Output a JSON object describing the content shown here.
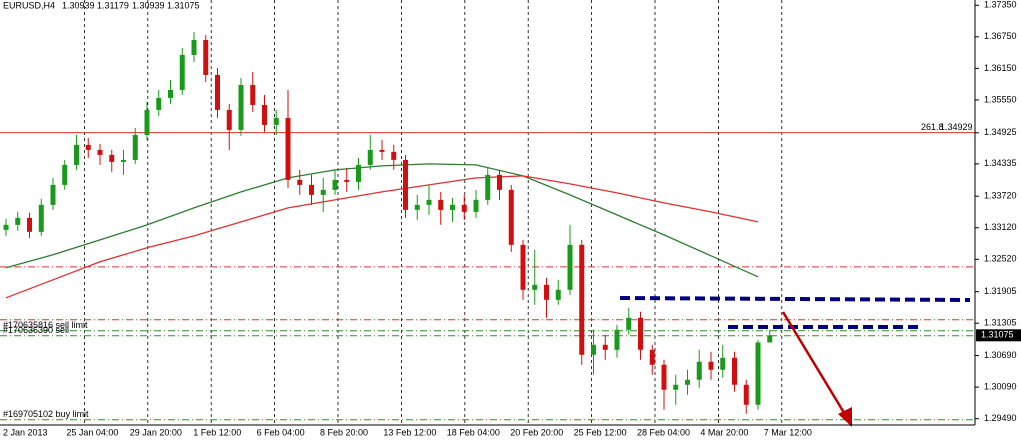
{
  "chart_data": {
    "type": "candlestick",
    "symbol": "EURUSD,H4",
    "up_color": "#1a9a1a",
    "down_color": "#d01010",
    "ylim": [
      1.2937,
      1.3745
    ],
    "yticks": [
      {
        "value": 1.3735,
        "label": "1.37350"
      },
      {
        "value": 1.3675,
        "label": "1.36750"
      },
      {
        "value": 1.3615,
        "label": "1.36150"
      },
      {
        "value": 1.3555,
        "label": "1.35550"
      },
      1.34925,
      1.34335,
      {
        "value": 1.3372,
        "label": "1.33720"
      },
      {
        "value": 1.3312,
        "label": "1.33120"
      },
      {
        "value": 1.3252,
        "label": "1.32520"
      },
      1.31905,
      1.31305,
      {
        "value": 1.3069,
        "label": "1.30690"
      },
      {
        "value": 1.3009,
        "label": "1.30090"
      },
      {
        "value": 1.2949,
        "label": "1.29490"
      }
    ],
    "x_labels": [
      "2 Jan 2013",
      "25 Jan 04:00",
      "29 Jan 20:00",
      "1 Feb 12:00",
      "6 Feb 04:00",
      "8 Feb 20:00",
      "13 Feb 12:00",
      "18 Feb 04:00",
      "20 Feb 20:00",
      "25 Feb 12:00",
      "28 Feb 04:00",
      "4 Mar 20:00",
      "7 Mar 12:00"
    ],
    "candles": {
      "open": [
        1.3308,
        1.33175,
        1.33308,
        1.33042,
        1.33555,
        1.33935,
        1.34315,
        1.34695,
        1.346,
        1.34505,
        1.34372,
        1.3441,
        1.34885,
        1.3536,
        1.35588,
        1.3574,
        1.36405,
        1.3669,
        1.36025,
        1.3536,
        1.3498,
        1.35835,
        1.35455,
        1.35075,
        1.35208,
        1.3403,
        1.33935,
        1.33745,
        1.3384,
        1.3403,
        1.33992,
        1.34315,
        1.346,
        1.34562,
        1.3441,
        1.3346,
        1.33555,
        1.3365,
        1.3346,
        1.33555,
        1.33422,
        1.3365,
        1.34125,
        1.3384,
        1.32795,
        1.3194,
        1.32035,
        1.3175,
        1.3194,
        1.32795,
        1.30705,
        1.30895,
        1.308,
        1.3118,
        1.31408,
        1.308,
        1.30515,
        1.3004,
        1.30135,
        1.3023,
        1.30572,
        1.3042,
        1.30648,
        1.30135,
        1.29755,
        1.30939
      ],
      "high": [
        1.33289,
        1.33422,
        1.33403,
        1.33669,
        1.34068,
        1.3441,
        1.34885,
        1.34828,
        1.34714,
        1.346,
        1.346,
        1.35018,
        1.35512,
        1.3574,
        1.3593,
        1.36538,
        1.36842,
        1.36785,
        1.36158,
        1.35474,
        1.35968,
        1.36082,
        1.35645,
        1.3536,
        1.3574,
        1.3422,
        1.34125,
        1.34068,
        1.3422,
        1.34258,
        1.34448,
        1.34885,
        1.3479,
        1.34695,
        1.34505,
        1.33745,
        1.33935,
        1.33802,
        1.33688,
        1.33745,
        1.3384,
        1.34258,
        1.3422,
        1.33935,
        1.3289,
        1.327,
        1.32168,
        1.3213,
        1.33175,
        1.3289,
        1.3118,
        1.31085,
        1.31275,
        1.31598,
        1.31522,
        1.30895,
        1.3061,
        1.30325,
        1.3042,
        1.308,
        1.30762,
        1.30895,
        1.30762,
        1.3023,
        1.3099,
        1.31179
      ],
      "low": [
        1.32966,
        1.33061,
        1.32928,
        1.32966,
        1.3346,
        1.3384,
        1.3422,
        1.34448,
        1.34315,
        1.34182,
        1.34125,
        1.34334,
        1.3479,
        1.35246,
        1.35474,
        1.35645,
        1.36272,
        1.35892,
        1.35208,
        1.346,
        1.34866,
        1.35322,
        1.34942,
        1.34885,
        1.33878,
        1.33745,
        1.33555,
        1.33422,
        1.33745,
        1.33802,
        1.3384,
        1.3422,
        1.3441,
        1.3422,
        1.33308,
        1.3327,
        1.33365,
        1.33175,
        1.33232,
        1.3327,
        1.33308,
        1.33555,
        1.3365,
        1.32662,
        1.3175,
        1.31655,
        1.31408,
        1.31655,
        1.31845,
        1.30515,
        1.30325,
        1.3061,
        1.30648,
        1.31085,
        1.3061,
        1.30325,
        1.2966,
        1.29755,
        1.29945,
        1.30078,
        1.3023,
        1.30268,
        1.30002,
        1.29584,
        1.2966,
        1.30939
      ],
      "close": [
        1.33175,
        1.33308,
        1.33042,
        1.33555,
        1.33935,
        1.34315,
        1.34695,
        1.346,
        1.34505,
        1.34372,
        1.3441,
        1.34885,
        1.3536,
        1.35588,
        1.3574,
        1.36405,
        1.3669,
        1.36025,
        1.3536,
        1.3498,
        1.35835,
        1.35455,
        1.35075,
        1.35208,
        1.3403,
        1.33935,
        1.33745,
        1.3384,
        1.3403,
        1.33992,
        1.34315,
        1.346,
        1.34562,
        1.3441,
        1.3346,
        1.33555,
        1.3365,
        1.3346,
        1.33555,
        1.33422,
        1.3365,
        1.34125,
        1.3384,
        1.32795,
        1.3194,
        1.32035,
        1.3175,
        1.3194,
        1.32795,
        1.30705,
        1.30895,
        1.308,
        1.3118,
        1.31408,
        1.308,
        1.30515,
        1.3004,
        1.30135,
        1.3023,
        1.30572,
        1.3042,
        1.30648,
        1.30135,
        1.29755,
        1.30939,
        1.31075
      ]
    },
    "moving_averages": [
      {
        "color": "#2e7d32",
        "x": [
          0,
          4,
          8,
          12,
          16,
          20,
          24,
          28,
          32,
          36,
          40,
          44,
          48,
          52,
          56,
          60,
          64
        ],
        "values": [
          1.32358,
          1.32605,
          1.3289,
          1.33175,
          1.33498,
          1.33802,
          1.34068,
          1.3422,
          1.34296,
          1.34334,
          1.34315,
          1.34106,
          1.33745,
          1.33365,
          1.32985,
          1.32586,
          1.32187
        ]
      },
      {
        "color": "#e03030",
        "x": [
          0,
          4,
          8,
          12,
          16,
          20,
          24,
          28,
          32,
          36,
          40,
          44,
          48,
          52,
          56,
          60,
          64
        ],
        "values": [
          1.31788,
          1.3213,
          1.32472,
          1.32738,
          1.32966,
          1.33232,
          1.33498,
          1.3365,
          1.33802,
          1.33935,
          1.34068,
          1.34106,
          1.33954,
          1.33783,
          1.33593,
          1.33422,
          1.33232
        ]
      }
    ],
    "levels": [
      {
        "value": 1.34929,
        "color": "#e03030",
        "style": "solid",
        "label": "261.8"
      },
      {
        "value": 1.32377,
        "color": "#e03030",
        "style": "dashdot"
      },
      {
        "value": 1.3137,
        "color": "#e03030",
        "style": "dashdot"
      },
      {
        "value": 1.31161,
        "color": "#2e8b2e",
        "style": "dashdot",
        "label": "#170635816 sell limit"
      },
      {
        "value": 1.31066,
        "color": "#2e8b2e",
        "style": "dashdot",
        "label": "#170636390 sell"
      },
      {
        "value": 1.2947,
        "color": "#2e8b2e",
        "style": "dashdot",
        "label": "#169705102 buy limit"
      }
    ]
  }
}
